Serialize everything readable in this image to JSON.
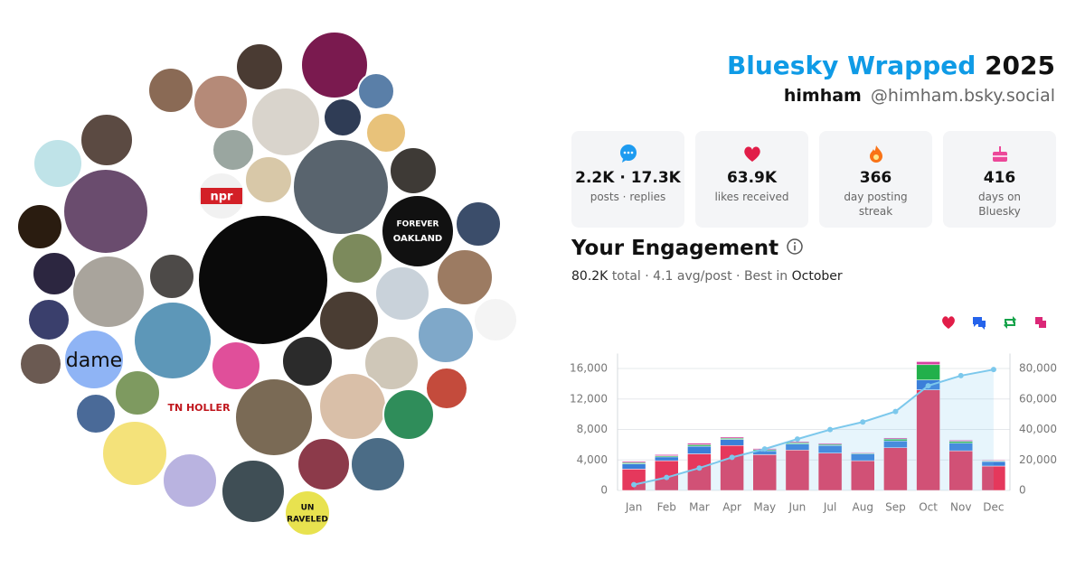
{
  "header": {
    "title": "Bluesky Wrapped",
    "year": "2025",
    "name": "himham",
    "handle": "@himham.bsky.social"
  },
  "stats": [
    {
      "value": "2.2K · 17.3K",
      "label": "posts · replies"
    },
    {
      "value": "63.9K",
      "label": "likes received"
    },
    {
      "value": "366",
      "label": "day posting streak"
    },
    {
      "value": "416",
      "label": "days on Bluesky"
    }
  ],
  "engagement": {
    "title": "Your Engagement",
    "total": "80.2K",
    "summary": "total · 4.1 avg/post · Best in",
    "best": "October"
  },
  "avatars": {
    "labels": [
      "npr",
      "FOREVER",
      "OAKLAND",
      "dame",
      "TN HOLLER",
      "UN",
      "RAVELED"
    ]
  },
  "chart_data": {
    "type": "bar",
    "stacked": true,
    "grid": true,
    "categories": [
      "Jan",
      "Feb",
      "Mar",
      "Apr",
      "May",
      "Jun",
      "Jul",
      "Aug",
      "Sep",
      "Oct",
      "Nov",
      "Dec"
    ],
    "series": [
      {
        "type": "bar",
        "color": "#e5385c",
        "values": [
          2800,
          3900,
          4800,
          5900,
          4700,
          5300,
          4900,
          3900,
          5600,
          13200,
          5200,
          3200
        ]
      },
      {
        "type": "bar",
        "color": "#3b7fd9",
        "values": [
          700,
          500,
          1000,
          800,
          500,
          800,
          1000,
          900,
          900,
          1300,
          1000,
          600
        ]
      },
      {
        "type": "bar",
        "color": "#22b04b",
        "values": [
          150,
          150,
          200,
          150,
          150,
          150,
          150,
          100,
          250,
          2000,
          250,
          100
        ]
      },
      {
        "type": "bar",
        "color": "#d6409f",
        "values": [
          150,
          150,
          200,
          150,
          150,
          150,
          150,
          100,
          150,
          400,
          150,
          100
        ]
      },
      {
        "type": "line",
        "axis": "y2",
        "color": "#7cc8ec",
        "values": [
          3800,
          8500,
          14700,
          21700,
          27200,
          33700,
          39900,
          44900,
          51800,
          68700,
          75300,
          79300
        ]
      }
    ],
    "ylim": [
      0,
      17600
    ],
    "yticks": [
      0,
      {
        "value": 4000,
        "label": "4,000"
      },
      {
        "value": 8000,
        "label": "8,000"
      },
      {
        "value": 12000,
        "label": "12,000"
      },
      {
        "value": 16000,
        "label": "16,000"
      }
    ],
    "y2lim": [
      0,
      88000
    ],
    "y2ticks": [
      0,
      {
        "value": 20000,
        "label": "20,000"
      },
      {
        "value": 40000,
        "label": "40,000"
      },
      {
        "value": 60000,
        "label": "60,000"
      },
      {
        "value": 80000,
        "label": "80,000"
      }
    ],
    "legend_colors": [
      "#e11d48",
      "#2563eb",
      "#16a34a",
      "#db2777"
    ]
  }
}
